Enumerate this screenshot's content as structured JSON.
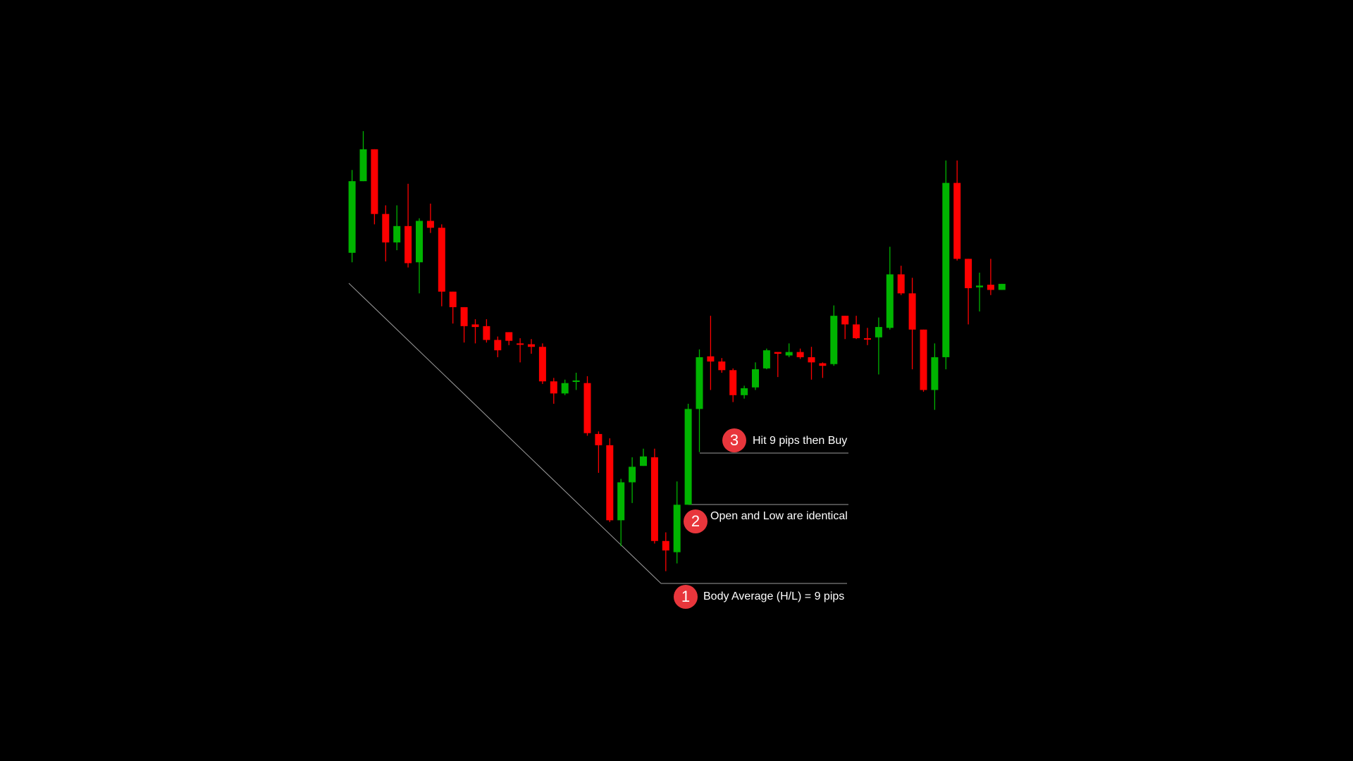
{
  "chart_data": {
    "type": "candlestick",
    "up_color": "#00b400",
    "down_color": "#ff0000",
    "ylim": [
      0,
      882
    ],
    "open": [
      589,
      672,
      709,
      634,
      601,
      620,
      578,
      626,
      618,
      544,
      526,
      506,
      504,
      488,
      497,
      484,
      483,
      480,
      440,
      426,
      440,
      438,
      379,
      366,
      279,
      323,
      342,
      352,
      255,
      242,
      297,
      408,
      469,
      463,
      453,
      424,
      433,
      455,
      474,
      470,
      474,
      468,
      461,
      460,
      516,
      506,
      490,
      491,
      502,
      564,
      542,
      500,
      430,
      468,
      670,
      582,
      549,
      552,
      546
    ],
    "high": [
      685,
      730,
      709,
      644,
      644,
      669,
      629,
      646,
      622,
      544,
      526,
      512,
      512,
      492,
      497,
      490,
      489,
      484,
      444,
      442,
      450,
      446,
      382,
      374,
      327,
      352,
      362,
      362,
      265,
      324,
      414,
      477,
      516,
      467,
      455,
      435,
      462,
      478,
      474,
      484,
      478,
      480,
      462,
      528,
      516,
      516,
      502,
      514,
      596,
      574,
      560,
      500,
      484,
      696,
      696,
      582,
      566,
      582,
      553
    ],
    "low": [
      578,
      672,
      622,
      579,
      592,
      572,
      542,
      612,
      527,
      507,
      485,
      484,
      485,
      468,
      482,
      462,
      472,
      437,
      414,
      424,
      430,
      377,
      334,
      277,
      249,
      299,
      342,
      252,
      220,
      229,
      297,
      358,
      430,
      450,
      416,
      420,
      430,
      454,
      445,
      468,
      466,
      442,
      444,
      458,
      489,
      489,
      482,
      448,
      500,
      540,
      454,
      428,
      407,
      454,
      580,
      506,
      521,
      540,
      546
    ],
    "close": [
      672,
      709,
      634,
      601,
      620,
      577,
      626,
      618,
      544,
      526,
      504,
      503,
      488,
      476,
      487,
      483,
      480,
      440,
      426,
      438,
      441,
      380,
      366,
      279,
      323,
      341,
      353,
      255,
      244,
      297,
      408,
      468,
      463,
      453,
      424,
      432,
      454,
      476,
      472,
      474,
      468,
      462,
      458,
      516,
      506,
      490,
      489,
      503,
      564,
      542,
      500,
      430,
      468,
      670,
      582,
      548,
      551,
      546,
      553
    ],
    "annotations": [
      {
        "number": "1",
        "text": "Body Average (H/L) = 9 pips"
      },
      {
        "number": "2",
        "text": "Open and Low are identical"
      },
      {
        "number": "3",
        "text": "Hit 9 pips then Buy"
      }
    ]
  }
}
